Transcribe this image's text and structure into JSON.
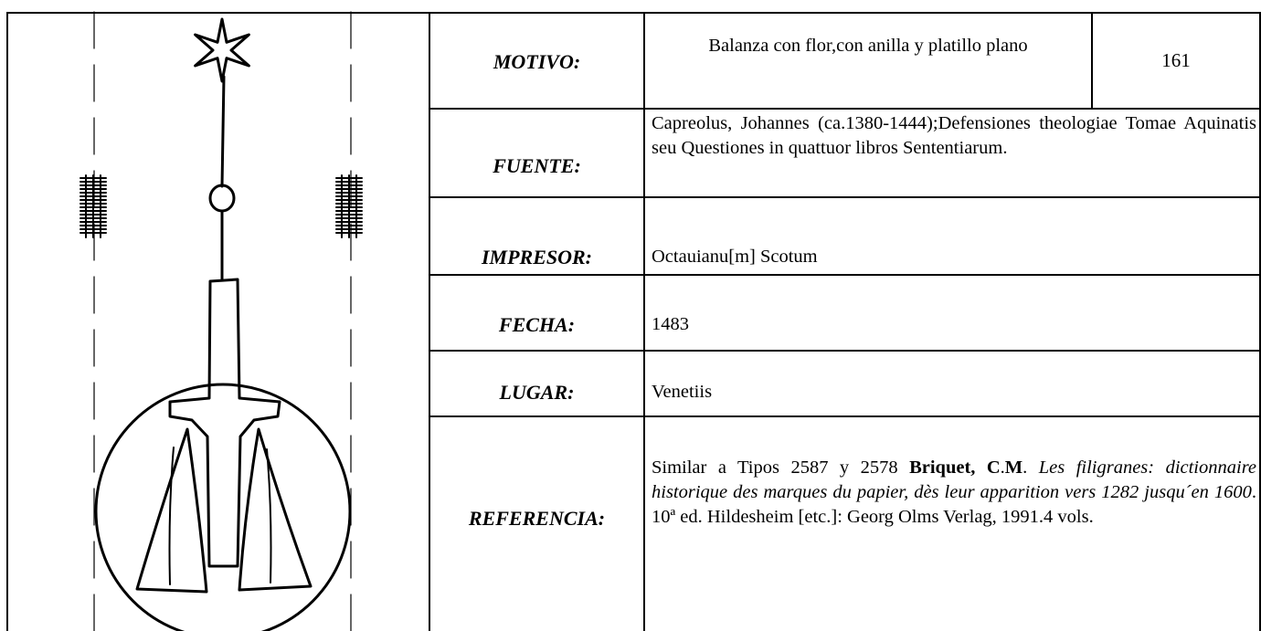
{
  "table": {
    "code": "161",
    "rows": [
      {
        "label": "MOTIVO:",
        "value": "Balanza con flor,con anilla y platillo plano"
      },
      {
        "label": "FUENTE:",
        "value": "Capreolus, Johannes (ca.1380-1444);Defensiones theologiae Tomae Aquinatis seu Questiones in quattuor libros Sententiarum."
      },
      {
        "label": "IMPRESOR:",
        "value": "Octauianu[m] Scotum"
      },
      {
        "label": "FECHA:",
        "value": "1483"
      },
      {
        "label": "LUGAR:",
        "value": "Venetiis"
      },
      {
        "label": "REFERENCIA:",
        "value": [
          {
            "text": "Similar a Tipos 2587 y 2578 "
          },
          {
            "text": "Briquet, C",
            "bold": true
          },
          {
            "text": "."
          },
          {
            "text": "M",
            "bold": true
          },
          {
            "text": ". "
          },
          {
            "text": "Les filigranes: dictionnaire historique des marques du papier, dès leur apparition vers 1282 jusqu´en 1600",
            "italic": true
          },
          {
            "text": ". 10ª ed. Hildesheim [etc.]: Georg Olms Verlag, 1991.4 vols."
          }
        ]
      }
    ]
  }
}
